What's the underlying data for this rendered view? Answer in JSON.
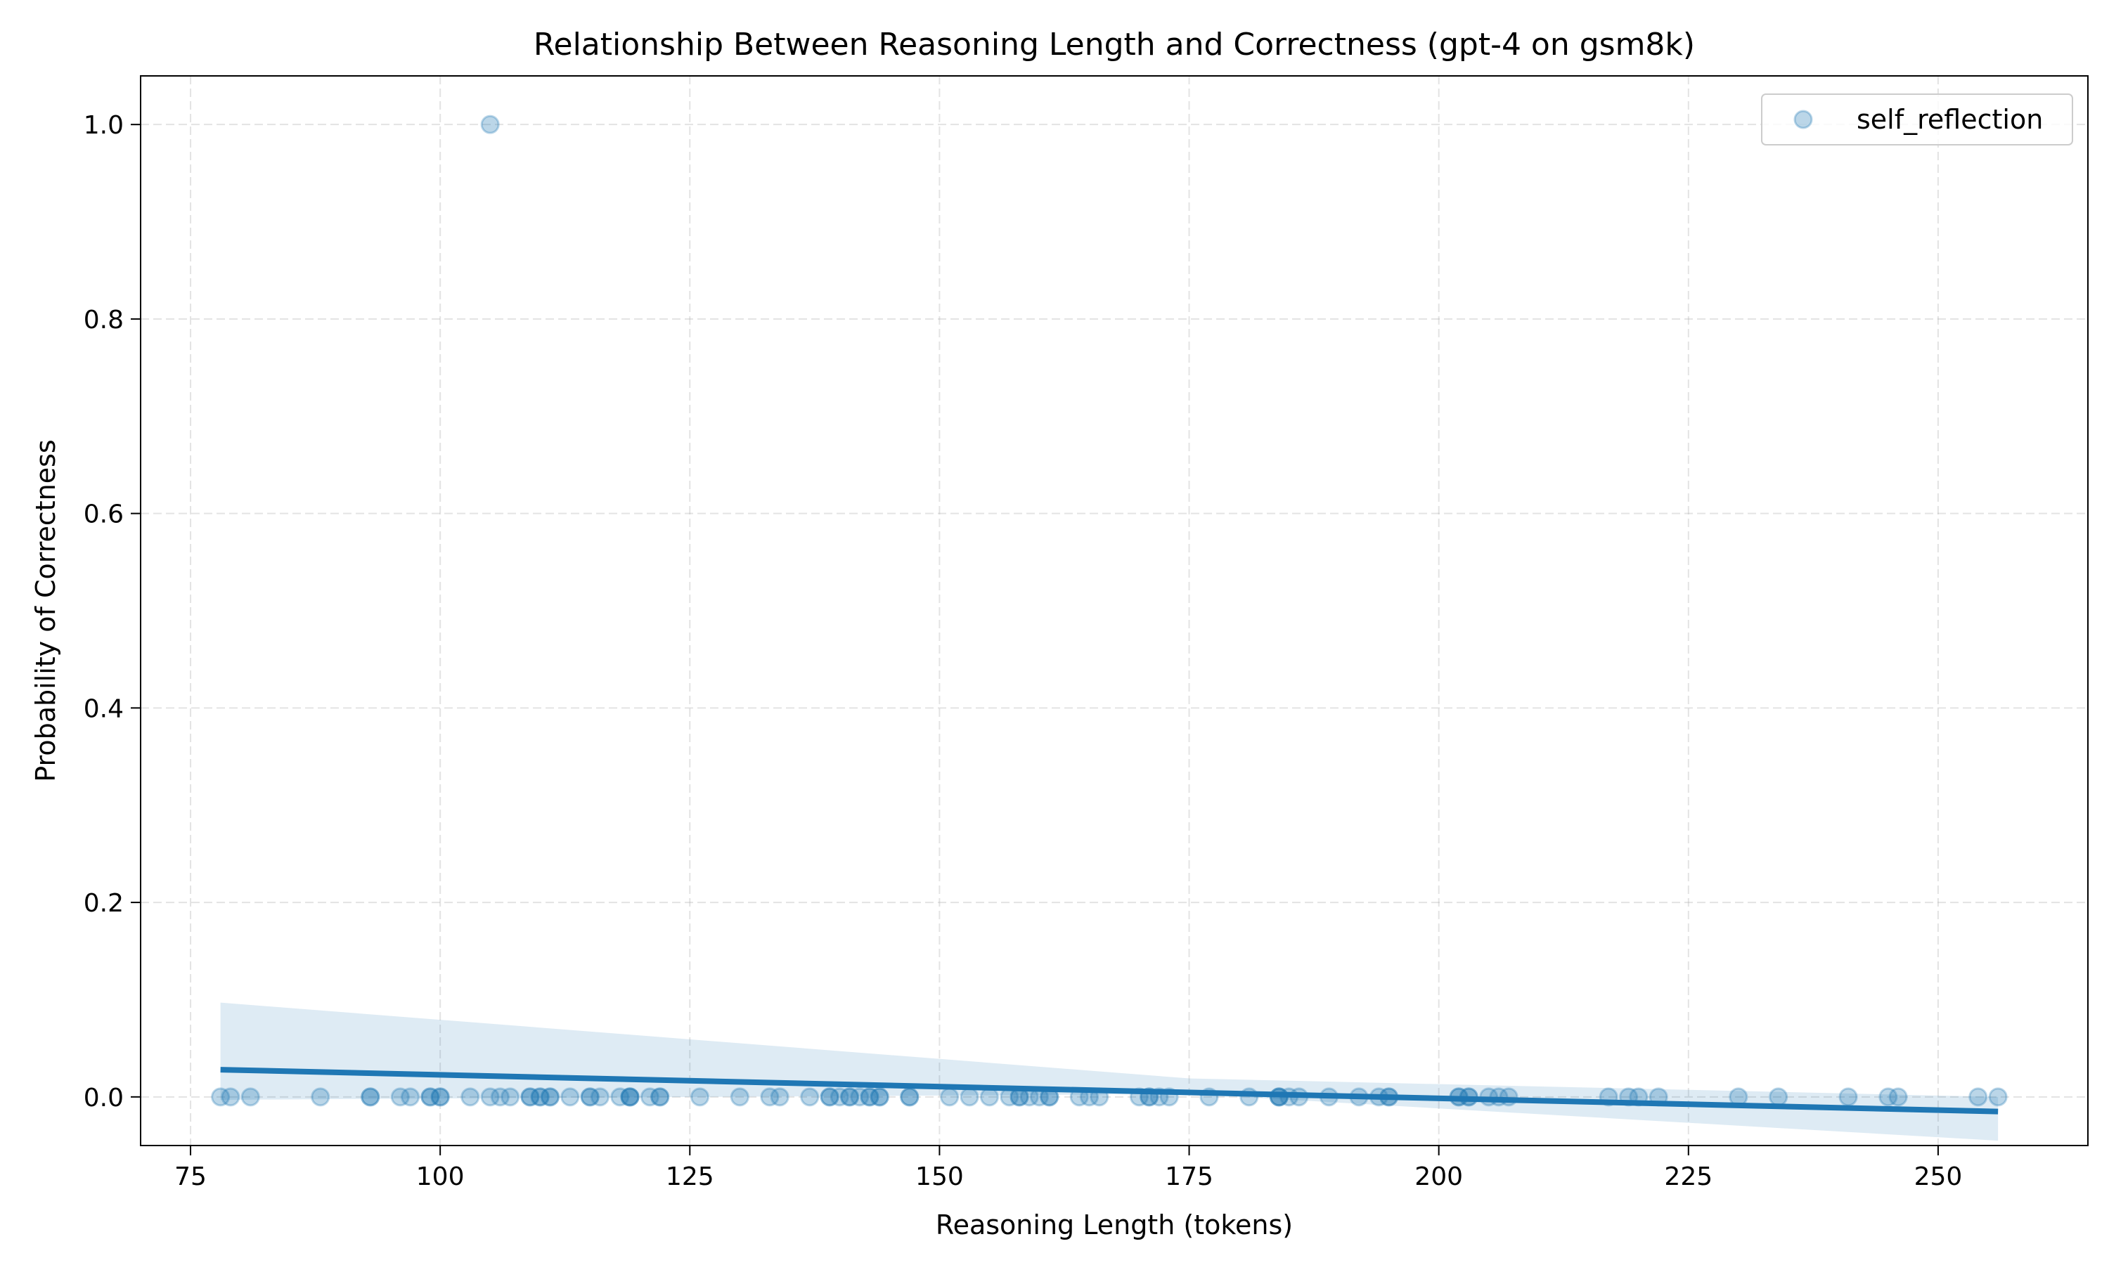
{
  "chart_data": {
    "type": "scatter",
    "title": "Relationship Between Reasoning Length and Correctness (gpt-4 on gsm8k)",
    "xlabel": "Reasoning Length (tokens)",
    "ylabel": "Probability of Correctness",
    "xlim": [
      70,
      265
    ],
    "ylim": [
      -0.05,
      1.05
    ],
    "xticks": [
      75,
      100,
      125,
      150,
      175,
      200,
      225,
      250
    ],
    "yticks": [
      0.0,
      0.2,
      0.4,
      0.6,
      0.8,
      1.0
    ],
    "xtick_labels": [
      "75",
      "100",
      "125",
      "150",
      "175",
      "200",
      "225",
      "250"
    ],
    "ytick_labels": [
      "0.0",
      "0.2",
      "0.4",
      "0.6",
      "0.8",
      "1.0"
    ],
    "grid": true,
    "legend_position": "top-right",
    "series": [
      {
        "name": "self_reflection",
        "color": "#1f77b4",
        "marker": "circle",
        "alpha": 0.3,
        "points": [
          {
            "x": 78,
            "y": 0
          },
          {
            "x": 79,
            "y": 0
          },
          {
            "x": 81,
            "y": 0
          },
          {
            "x": 88,
            "y": 0
          },
          {
            "x": 93,
            "y": 0
          },
          {
            "x": 93,
            "y": 0
          },
          {
            "x": 96,
            "y": 0
          },
          {
            "x": 97,
            "y": 0
          },
          {
            "x": 99,
            "y": 0
          },
          {
            "x": 99,
            "y": 0
          },
          {
            "x": 100,
            "y": 0
          },
          {
            "x": 100,
            "y": 0
          },
          {
            "x": 103,
            "y": 0
          },
          {
            "x": 105,
            "y": 1
          },
          {
            "x": 105,
            "y": 0
          },
          {
            "x": 106,
            "y": 0
          },
          {
            "x": 107,
            "y": 0
          },
          {
            "x": 109,
            "y": 0
          },
          {
            "x": 109,
            "y": 0
          },
          {
            "x": 110,
            "y": 0
          },
          {
            "x": 110,
            "y": 0
          },
          {
            "x": 111,
            "y": 0
          },
          {
            "x": 111,
            "y": 0
          },
          {
            "x": 113,
            "y": 0
          },
          {
            "x": 115,
            "y": 0
          },
          {
            "x": 115,
            "y": 0
          },
          {
            "x": 116,
            "y": 0
          },
          {
            "x": 118,
            "y": 0
          },
          {
            "x": 119,
            "y": 0
          },
          {
            "x": 119,
            "y": 0
          },
          {
            "x": 119,
            "y": 0
          },
          {
            "x": 121,
            "y": 0
          },
          {
            "x": 122,
            "y": 0
          },
          {
            "x": 122,
            "y": 0
          },
          {
            "x": 126,
            "y": 0
          },
          {
            "x": 130,
            "y": 0
          },
          {
            "x": 133,
            "y": 0
          },
          {
            "x": 134,
            "y": 0
          },
          {
            "x": 137,
            "y": 0
          },
          {
            "x": 139,
            "y": 0
          },
          {
            "x": 139,
            "y": 0
          },
          {
            "x": 140,
            "y": 0
          },
          {
            "x": 141,
            "y": 0
          },
          {
            "x": 141,
            "y": 0
          },
          {
            "x": 142,
            "y": 0
          },
          {
            "x": 143,
            "y": 0
          },
          {
            "x": 143,
            "y": 0
          },
          {
            "x": 144,
            "y": 0
          },
          {
            "x": 144,
            "y": 0
          },
          {
            "x": 147,
            "y": 0
          },
          {
            "x": 147,
            "y": 0
          },
          {
            "x": 151,
            "y": 0
          },
          {
            "x": 153,
            "y": 0
          },
          {
            "x": 155,
            "y": 0
          },
          {
            "x": 157,
            "y": 0
          },
          {
            "x": 158,
            "y": 0
          },
          {
            "x": 158,
            "y": 0
          },
          {
            "x": 159,
            "y": 0
          },
          {
            "x": 160,
            "y": 0
          },
          {
            "x": 161,
            "y": 0
          },
          {
            "x": 161,
            "y": 0
          },
          {
            "x": 164,
            "y": 0
          },
          {
            "x": 165,
            "y": 0
          },
          {
            "x": 166,
            "y": 0
          },
          {
            "x": 170,
            "y": 0
          },
          {
            "x": 171,
            "y": 0
          },
          {
            "x": 171,
            "y": 0
          },
          {
            "x": 172,
            "y": 0
          },
          {
            "x": 173,
            "y": 0
          },
          {
            "x": 177,
            "y": 0
          },
          {
            "x": 181,
            "y": 0
          },
          {
            "x": 184,
            "y": 0
          },
          {
            "x": 184,
            "y": 0
          },
          {
            "x": 184,
            "y": 0
          },
          {
            "x": 185,
            "y": 0
          },
          {
            "x": 186,
            "y": 0
          },
          {
            "x": 189,
            "y": 0
          },
          {
            "x": 192,
            "y": 0
          },
          {
            "x": 194,
            "y": 0
          },
          {
            "x": 195,
            "y": 0
          },
          {
            "x": 195,
            "y": 0
          },
          {
            "x": 202,
            "y": 0
          },
          {
            "x": 202,
            "y": 0
          },
          {
            "x": 203,
            "y": 0
          },
          {
            "x": 203,
            "y": 0
          },
          {
            "x": 205,
            "y": 0
          },
          {
            "x": 206,
            "y": 0
          },
          {
            "x": 207,
            "y": 0
          },
          {
            "x": 217,
            "y": 0
          },
          {
            "x": 219,
            "y": 0
          },
          {
            "x": 220,
            "y": 0
          },
          {
            "x": 222,
            "y": 0
          },
          {
            "x": 230,
            "y": 0
          },
          {
            "x": 234,
            "y": 0
          },
          {
            "x": 241,
            "y": 0
          },
          {
            "x": 245,
            "y": 0
          },
          {
            "x": 246,
            "y": 0
          },
          {
            "x": 254,
            "y": 0
          },
          {
            "x": 256,
            "y": 0
          }
        ]
      }
    ],
    "regression": {
      "color": "#1f77b4",
      "x_start": 78,
      "y_start": 0.028,
      "x_end": 256,
      "y_end": -0.015,
      "ci_band": [
        {
          "x": 78,
          "lower": -0.003,
          "upper": 0.097
        },
        {
          "x": 175,
          "lower": 0.003,
          "upper": 0.019
        },
        {
          "x": 256,
          "lower": -0.045,
          "upper": 0.0
        }
      ]
    }
  }
}
